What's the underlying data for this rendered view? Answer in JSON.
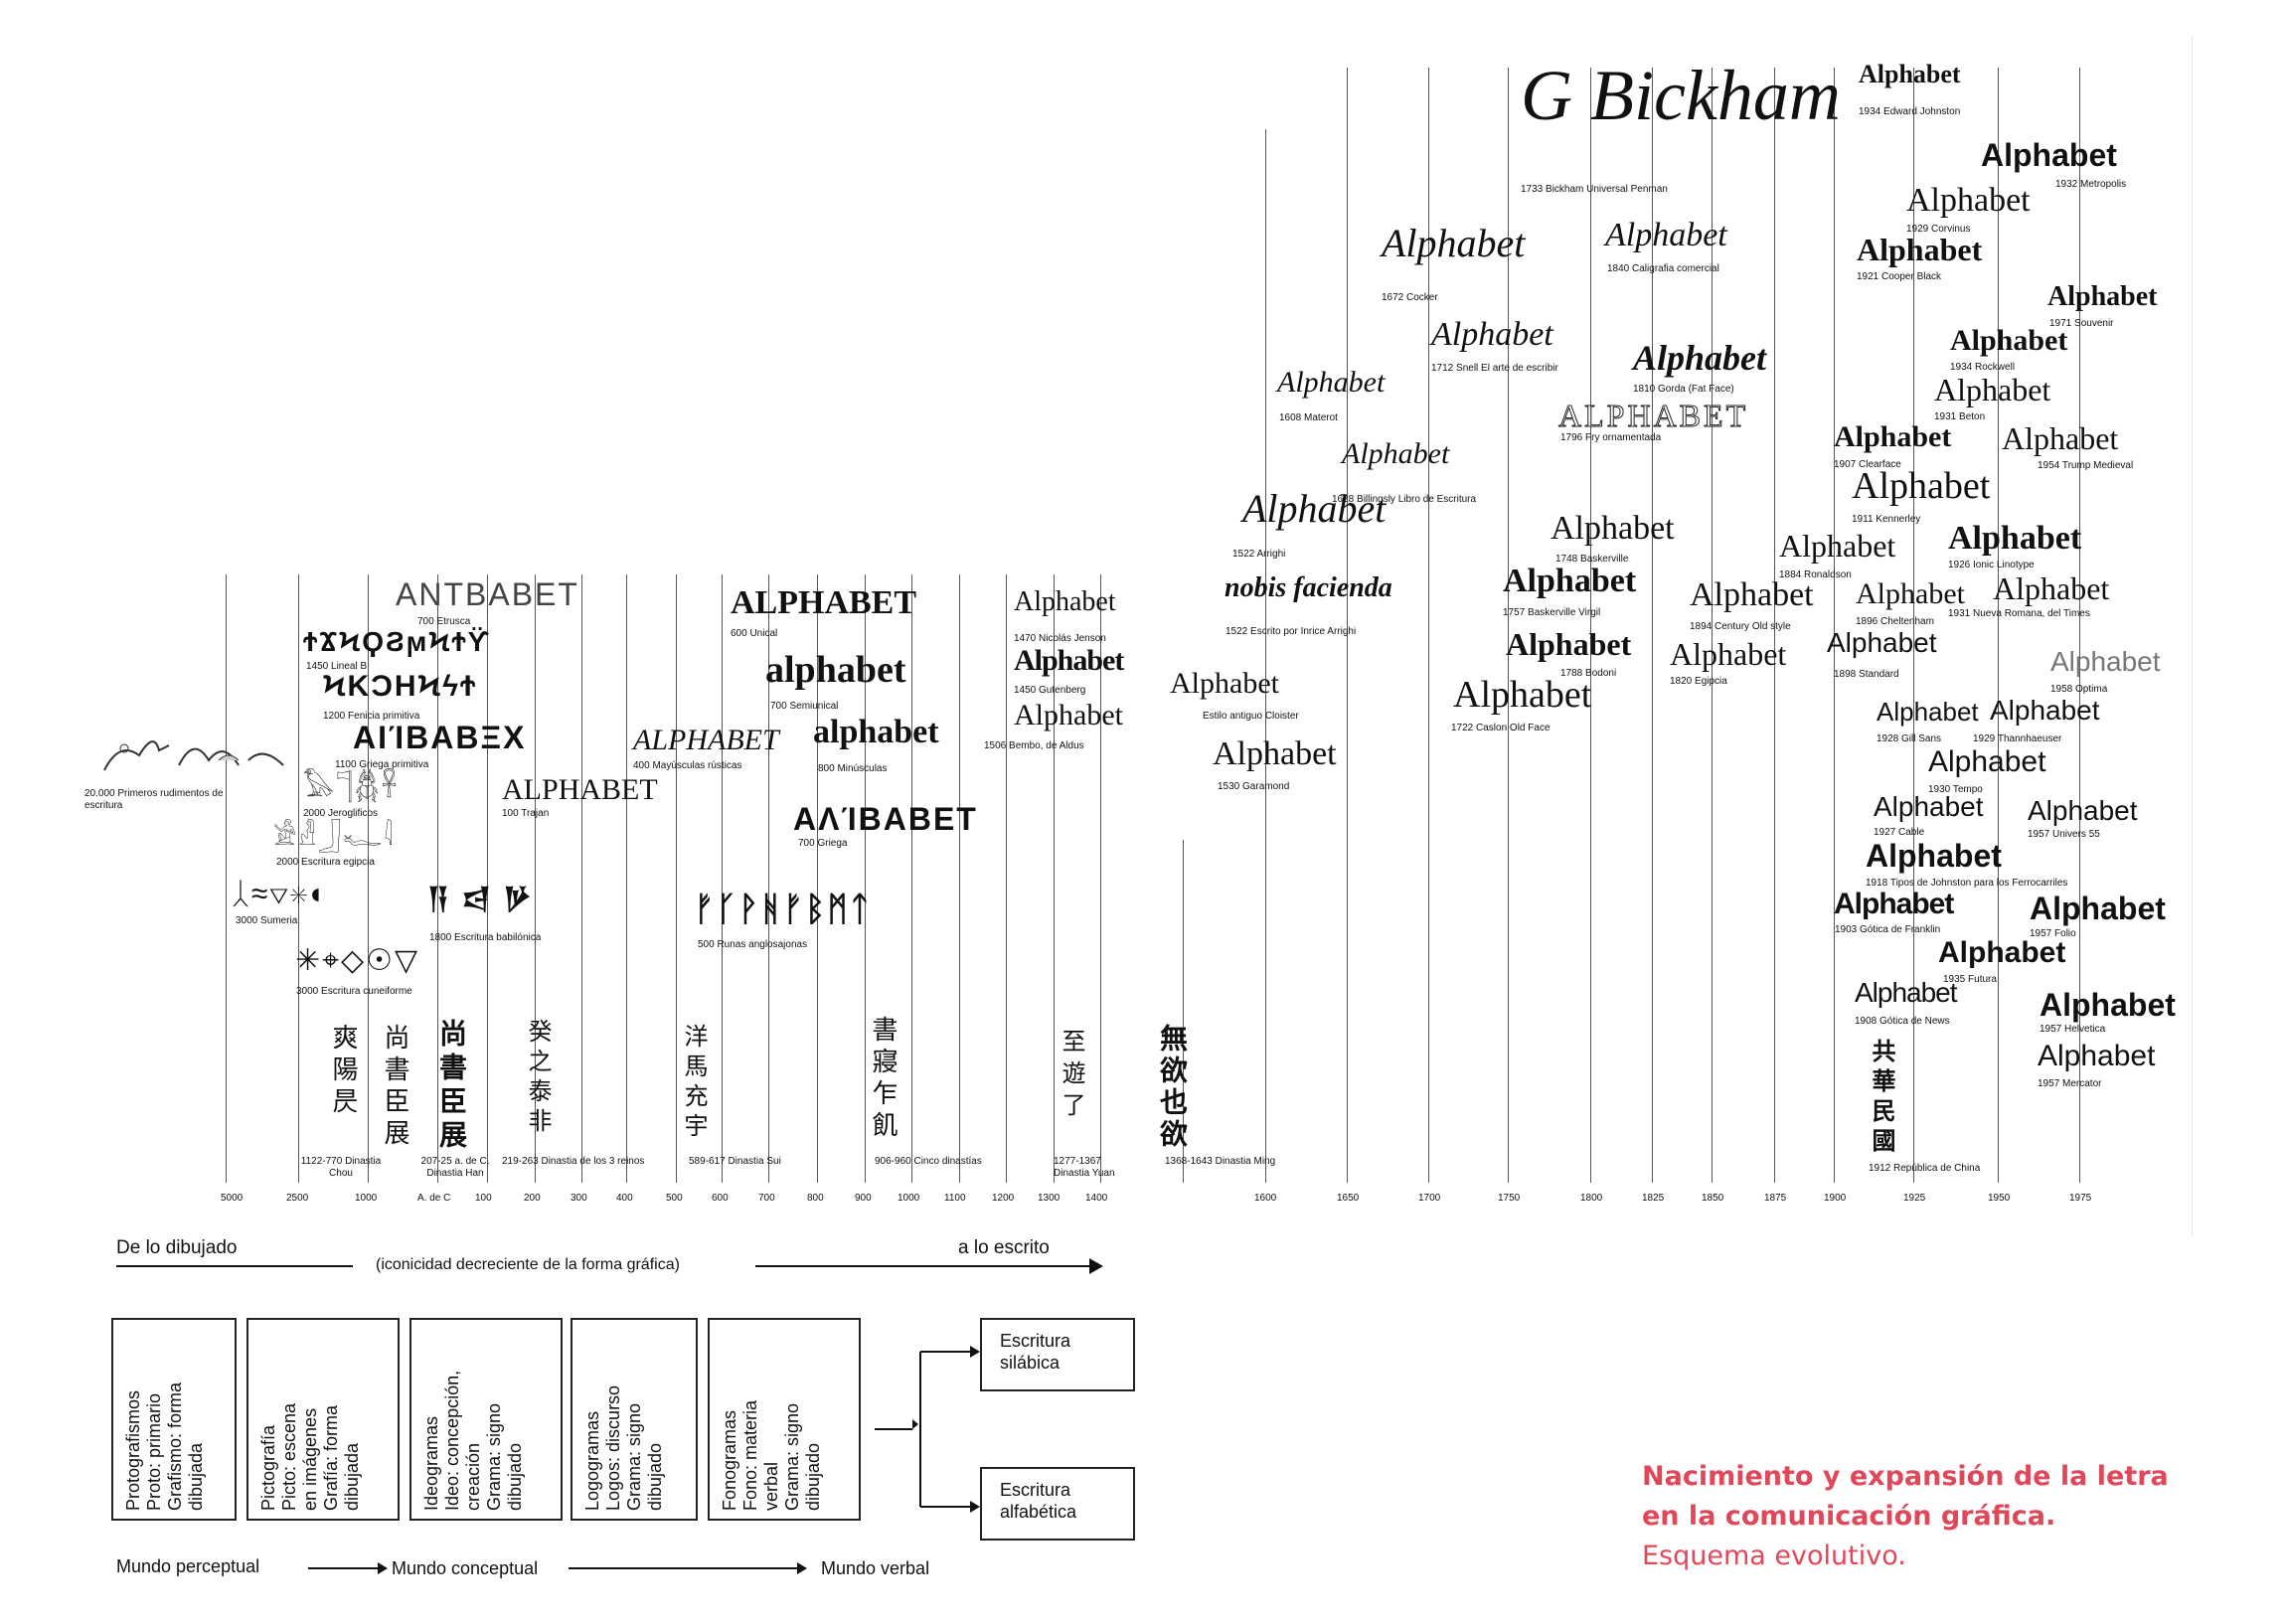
{
  "sample_word": "Alphabet",
  "timeline_ticks": [
    "5000",
    "2500",
    "1000",
    "A. de C",
    "100",
    "200",
    "300",
    "400",
    "500",
    "600",
    "700",
    "800",
    "900",
    "1000",
    "1100",
    "1200",
    "1300",
    "1400",
    "1600",
    "1650",
    "1700",
    "1750",
    "1800",
    "1825",
    "1850",
    "1875",
    "1900",
    "1925",
    "1950",
    "1975"
  ],
  "axis_heading": {
    "left": "De lo dibujado",
    "middle": "(iconicidad decreciente de la forma gráfica)",
    "right": "a lo escrito"
  },
  "ancient": {
    "s20000": "20.000  Primeros rudimentos de escritura",
    "s3000a": "3000  Sumeria",
    "s3000b": "3000  Escritura cuneiforme",
    "s2000a": "2000  Jeroglificos",
    "s2000b": "2000  Escritura egipcia",
    "s1800": "1800  Escritura babilónica",
    "s1450": "1450  Lineal B",
    "s1200": "1200  Fenicia primitiva",
    "s1100": "1100  Griega primitiva",
    "s700e": "700  Etrusca",
    "s100": "100  Trajan",
    "s400": "400  Mayúsculas rústicas",
    "s600": "600  Unical",
    "s700s": "700  Semiunical",
    "s800": "800  Minúsculas",
    "s700g": "700  Griega",
    "s500": "500  Runas anglosajonas"
  },
  "glyph_samples": {
    "etrusca": "ΑΝΤΒΑΒΕΤ",
    "lineal_b": "ϮϪϞϘϨϻϞϮϔ",
    "fenicia": "ϞΚϽΗϞϟϮ",
    "griega_prim": "ΑΙΊΒΑΒΞΧ",
    "trajan": "ALPHABET",
    "rusticas": "ALPHABET",
    "unical": "ALPHABET",
    "semiunical": "alphabet",
    "minusculas": "alphabet",
    "griega": "ΑΛΊΒΑΒΕΤ",
    "runas": "ᚠᚴᚹᚻᚠᛒᛗᛏ",
    "sumeria": "ᛸ≈▽✳◐",
    "cuneiforme": "✳⌖◇☉▽",
    "babilonica": "𒀀 𒁀 𒃻",
    "jeroglificos": "𓅃𓊹𓆣𓋹",
    "egipcia": "𓀀𓁐𓃀𓆑𓇋"
  },
  "print": {
    "p1470": "1470  Nicolás Jenson",
    "p1450": "1450  Gutenberg",
    "p1506": "1506  Bembo, de Aldus",
    "cloister": "Estilo antiguo Cloister",
    "p1530": "1530  Garamond",
    "p1522a": "1522  Arrighi",
    "p1522b": "1522  Escrito por Inrice Arrighi",
    "nobis": "nobis facienda",
    "p1608": "1608  Materot",
    "p1628": "1628  Billingsly  Libro de Escritura",
    "p1672": "1672  Cocker",
    "p1712": "1712  Snell  El arte de escribir",
    "p1733": "1733  Bickham  Universal Penman",
    "bickham_sig": "G Bickham",
    "p1840": "1840  Caligrafia comercial",
    "p1810": "1810  Gorda (Fat Face)",
    "p1796": "1796  Fry ornamentada",
    "p1748": "1748  Baskerville",
    "p1757": "1757  Baskerville Virgil",
    "p1788": "1788  Bodoni",
    "p1722": "1722  Caslon Old Face",
    "p1894": "1894  Century Old style",
    "p1820": "1820  Egipcia",
    "p1884": "1884  Ronaldson",
    "p1896": "1896  Cheltenham",
    "p1898": "1898  Standard",
    "p1907": "1907  Clearface",
    "p1911": "1911  Kennerley",
    "p1934j": "1934  Edward Johnston",
    "p1932": "1932  Metropolis",
    "p1929c": "1929  Corvinus",
    "p1921": "1921  Cooper Black",
    "p1971": "1971  Souvenir",
    "p1934r": "1934  Rockwell",
    "p1931b": "1931  Beton",
    "p1954": "1954  Trump Medieval",
    "p1926": "1926  Ionic Linotype",
    "p1931n": "1931  Nueva Romana, del Times",
    "p1958": "1958  Optima",
    "p1928": "1928  Gill Sans",
    "p1929t": "1929  Thannhaeuser",
    "p1930": "1930  Tempo",
    "p1927": "1927  Cable",
    "p1957u": "1957  Univers 55",
    "p1918": "1918  Tipos de Johnston para los Ferrocarriles",
    "p1903": "1903  Gótica de Franklin",
    "p1957f": "1957  Folio",
    "p1935": "1935  Futura",
    "p1908": "1908  Gótica de News",
    "p1957h": "1957  Helvetica",
    "p1957m": "1957  Mercator"
  },
  "chinese": {
    "chou_chars": "爽陽昃",
    "chou": "1122-770  Dinastia Chou",
    "han_chars": "尚書臣展",
    "han": "207-25 a. de C.  Dinastia Han",
    "c219_chars": "癸之泰非",
    "c219": "219-263  Dinastia de los 3 reinos",
    "sui_chars": "洋馬充宇",
    "sui": "589-617  Dinastia Sui",
    "cinco_chars": "書寢乍飢",
    "cinco": "906-960  Cinco dinastías",
    "yuan_chars": "至遊了",
    "yuan": "1277-1367  Dinastia Yuan",
    "ming_chars": "無欲也欲",
    "ming": "1368-1643  Dinastia Ming",
    "rep_chars": "共華民國",
    "rep": "1912  República de China"
  },
  "flow": {
    "boxes": [
      "Protografismos\nProto: primario\nGrafismo: forma\ndibujada",
      "Pictografía\nPicto: escena\nen imágenes\nGrafía: forma\ndibujada",
      "Ideogramas\nIdeo: concepción,\ncreación\nGrama: signo\ndibujado",
      "Logogramas\nLogos: discurso\nGrama: signo\ndibujado",
      "Fonogramas\nFono: materia\nverbal\nGrama: signo\ndibujado"
    ],
    "silabica": "Escritura\nsilábica",
    "alfabetica": "Escritura\nalfabética",
    "world1": "Mundo perceptual",
    "world2": "Mundo conceptual",
    "world3": "Mundo verbal"
  },
  "caption": {
    "bold": "Nacimiento y expansión de la letra en la comunicación gráfica.",
    "normal": "Esquema evolutivo."
  },
  "colors": {
    "caption": "#e0485a",
    "ink": "#111111",
    "line": "#555555"
  }
}
